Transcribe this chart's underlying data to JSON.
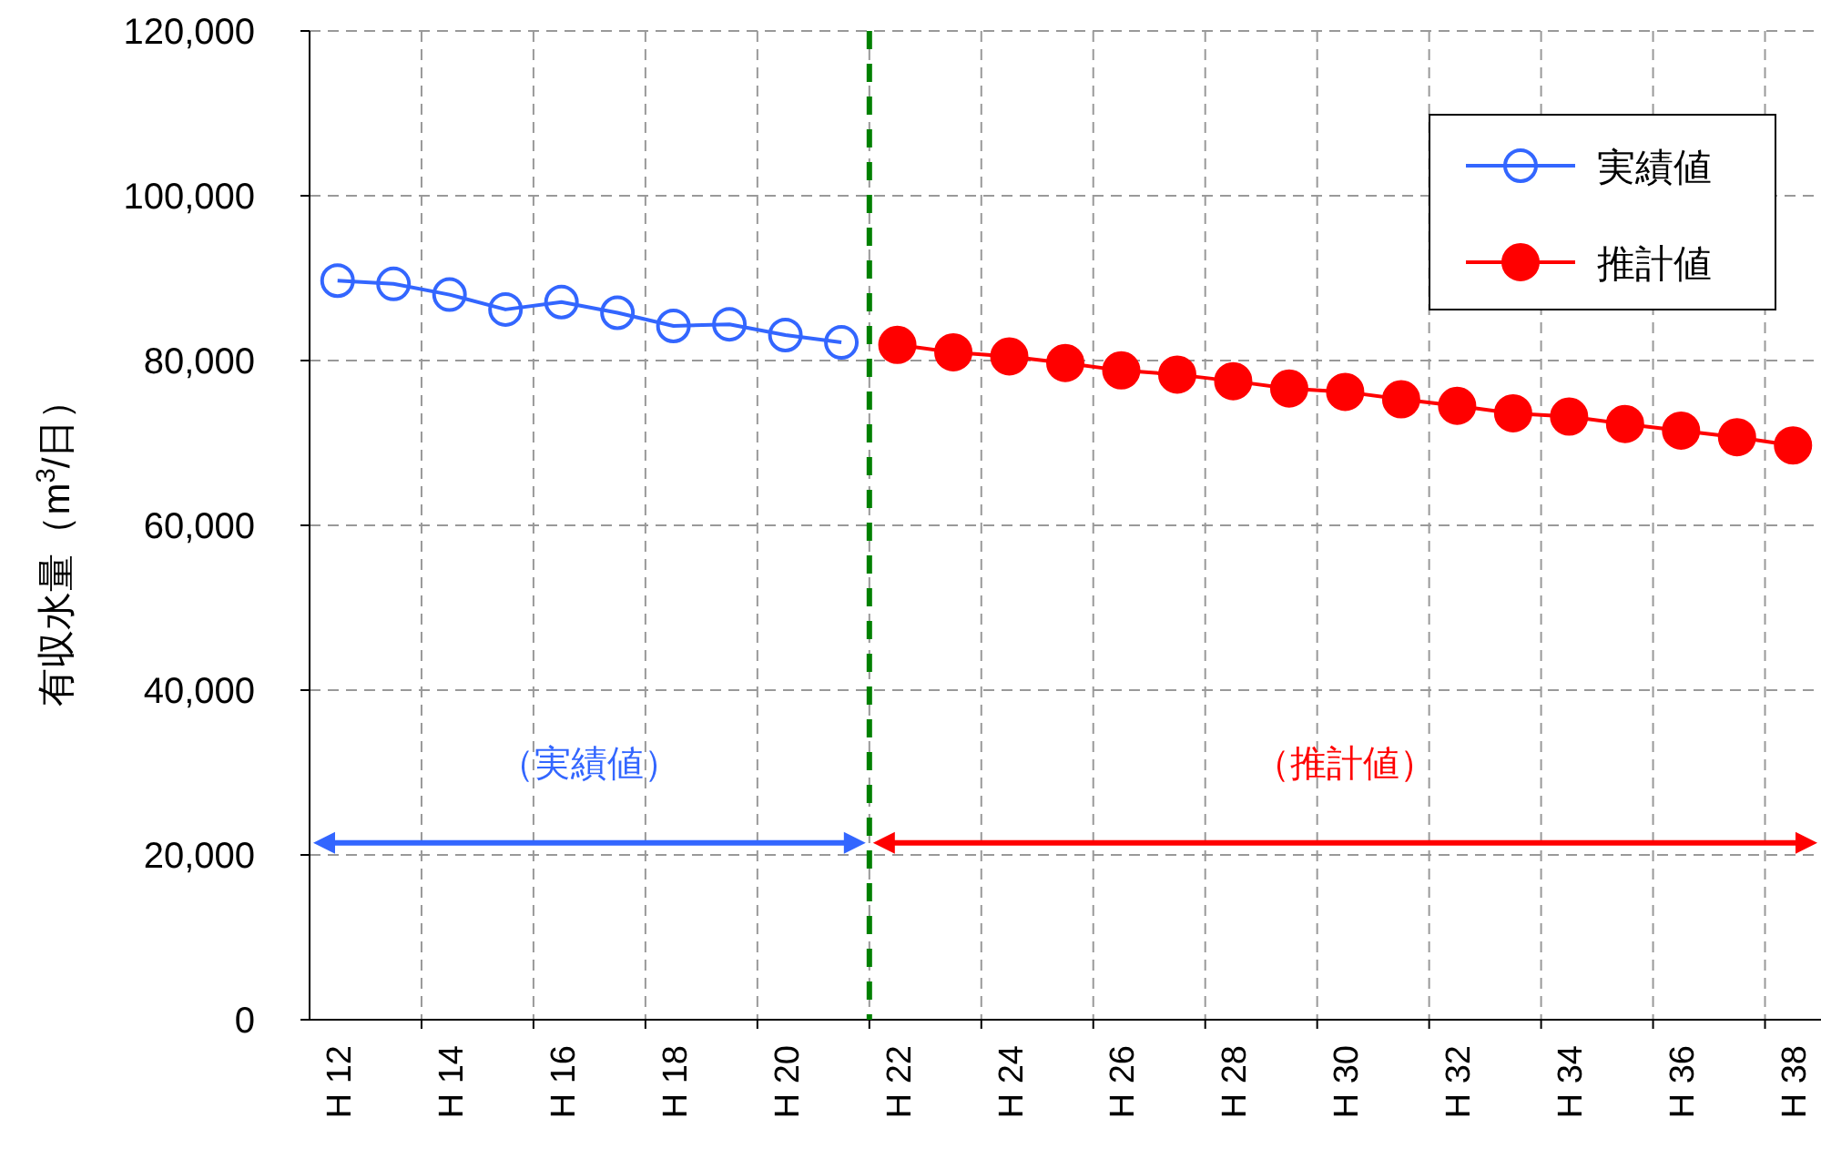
{
  "chart_data": {
    "type": "line",
    "ylabel": "有収水量（m$^{3}$/日）",
    "categories": [
      "H 12",
      null,
      "H 14",
      null,
      "H 16",
      null,
      "H 18",
      null,
      "H 20",
      null,
      "H 22",
      null,
      "H 24",
      null,
      "H 26",
      null,
      "H 28",
      null,
      "H 30",
      null,
      "H 32",
      null,
      "H 34",
      null,
      "H 36",
      null,
      "H 38"
    ],
    "ylim": [
      0,
      120000
    ],
    "yticks": [
      {
        "value": 0,
        "label": "0"
      },
      {
        "value": 20000,
        "label": "20,000"
      },
      {
        "value": 40000,
        "label": "40,000"
      },
      {
        "value": 60000,
        "label": "60,000"
      },
      {
        "value": 80000,
        "label": "80,000"
      },
      {
        "value": 100000,
        "label": "100,000"
      },
      {
        "value": 120000,
        "label": "120,000"
      }
    ],
    "series": [
      {
        "name": "実績値",
        "color": "#3366ff",
        "values": [
          89700,
          89300,
          88000,
          86200,
          87100,
          85800,
          84200,
          84400,
          83100,
          82200,
          null,
          null,
          null,
          null,
          null,
          null,
          null,
          null,
          null,
          null,
          null,
          null,
          null,
          null,
          null,
          null,
          null
        ]
      },
      {
        "name": "推計値",
        "color": "#ff0000",
        "values": [
          null,
          null,
          null,
          null,
          null,
          null,
          null,
          null,
          null,
          null,
          81900,
          81000,
          80500,
          79700,
          78800,
          78300,
          77500,
          76600,
          76200,
          75300,
          74500,
          73600,
          73200,
          72300,
          71500,
          70700,
          69700
        ]
      }
    ],
    "marker": "circle",
    "ref_lines": [
      {
        "axis": "x",
        "value": "H 22",
        "color": "#008000",
        "line_style": "dashed"
      }
    ],
    "annotations": [
      "（実績値）",
      "（推計値）"
    ],
    "grid": true,
    "legend": "top right"
  }
}
